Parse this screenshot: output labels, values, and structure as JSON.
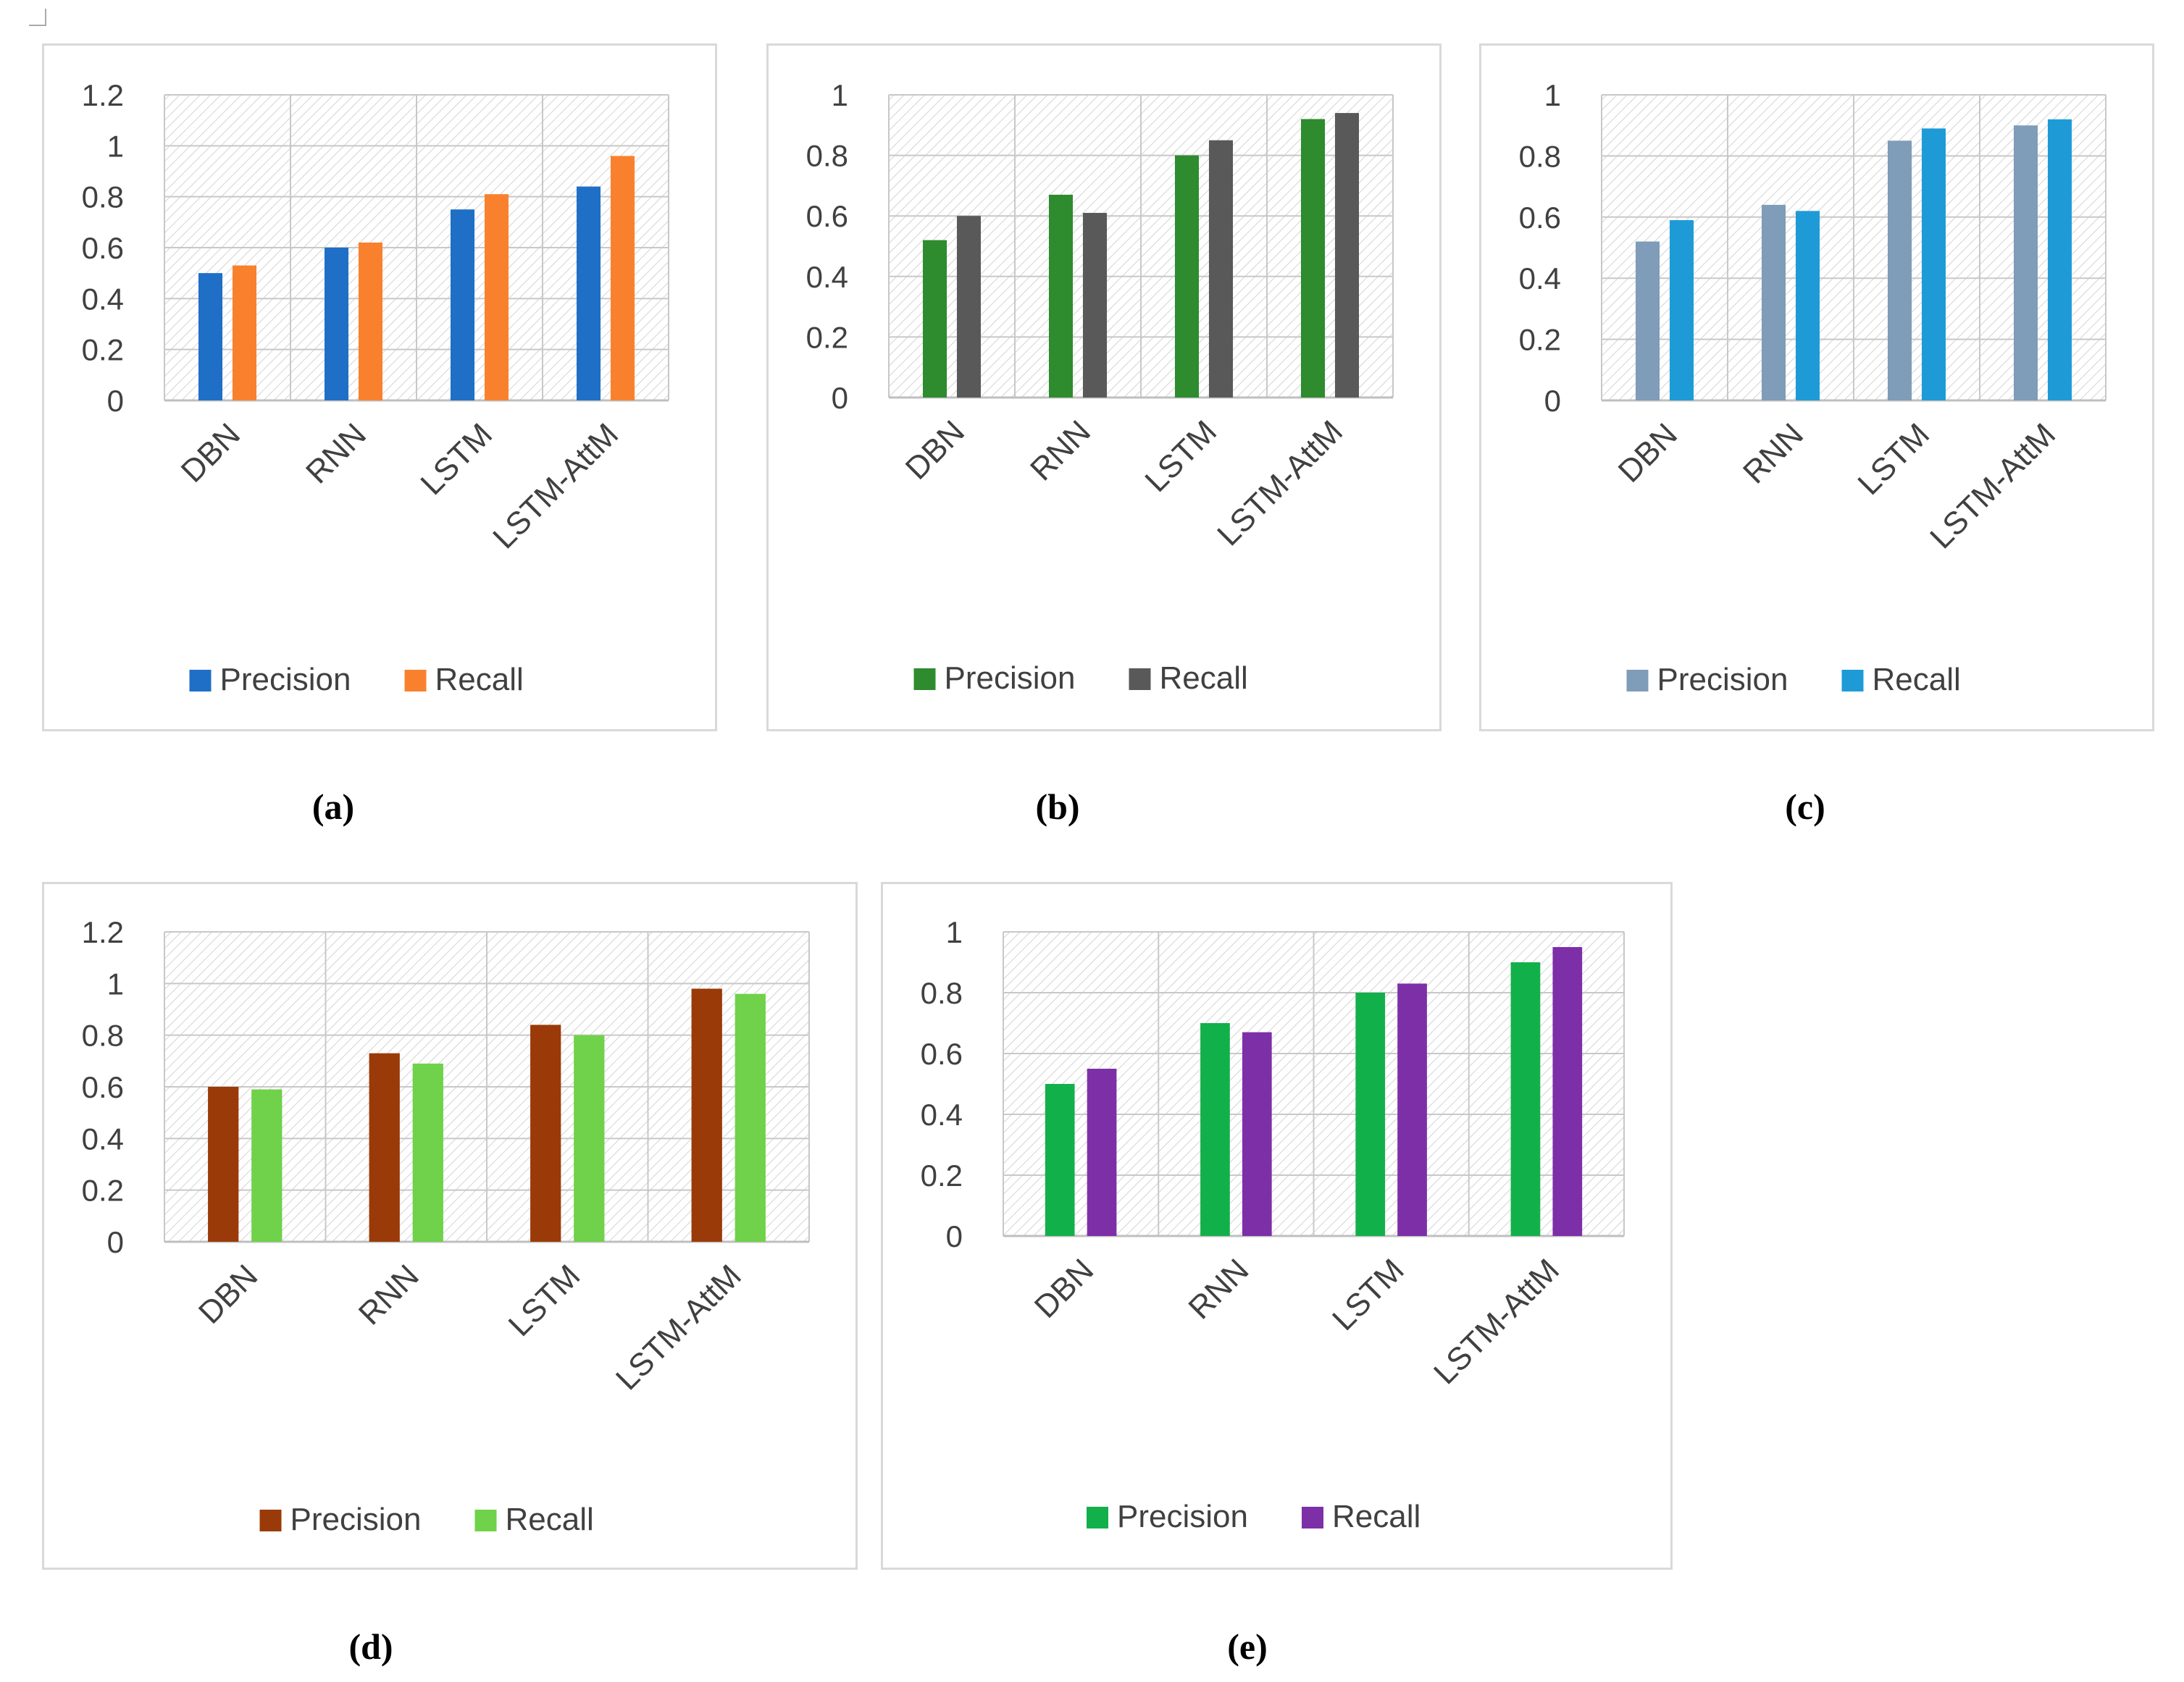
{
  "chart_data": [
    {
      "id": "a",
      "type": "bar",
      "caption": "(a)",
      "categories": [
        "DBN",
        "RNN",
        "LSTM",
        "LSTM-AttM"
      ],
      "yticks": [
        "0",
        "0.2",
        "0.4",
        "0.6",
        "0.8",
        "1",
        "1.2"
      ],
      "ylim": [
        0,
        1.2
      ],
      "series": [
        {
          "name": "Precision",
          "color": "#1f6fc6",
          "values": [
            0.5,
            0.6,
            0.75,
            0.84
          ]
        },
        {
          "name": "Recall",
          "color": "#f9812e",
          "values": [
            0.53,
            0.62,
            0.81,
            0.96
          ]
        }
      ]
    },
    {
      "id": "b",
      "type": "bar",
      "caption": "(b)",
      "categories": [
        "DBN",
        "RNN",
        "LSTM",
        "LSTM-AttM"
      ],
      "yticks": [
        "0",
        "0.2",
        "0.4",
        "0.6",
        "0.8",
        "1"
      ],
      "ylim": [
        0,
        1.0
      ],
      "series": [
        {
          "name": "Precision",
          "color": "#2e8b2e",
          "values": [
            0.52,
            0.67,
            0.8,
            0.92
          ]
        },
        {
          "name": "Recall",
          "color": "#595959",
          "values": [
            0.6,
            0.61,
            0.85,
            0.94
          ]
        }
      ]
    },
    {
      "id": "c",
      "type": "bar",
      "caption": "(c)",
      "categories": [
        "DBN",
        "RNN",
        "LSTM",
        "LSTM-AttM"
      ],
      "yticks": [
        "0",
        "0.2",
        "0.4",
        "0.6",
        "0.8",
        "1"
      ],
      "ylim": [
        0,
        1.0
      ],
      "series": [
        {
          "name": "Precision",
          "color": "#7f9cb8",
          "values": [
            0.52,
            0.64,
            0.85,
            0.9
          ]
        },
        {
          "name": "Recall",
          "color": "#1e9bd7",
          "values": [
            0.59,
            0.62,
            0.89,
            0.92
          ]
        }
      ]
    },
    {
      "id": "d",
      "type": "bar",
      "caption": "(d)",
      "categories": [
        "DBN",
        "RNN",
        "LSTM",
        "LSTM-AttM"
      ],
      "yticks": [
        "0",
        "0.2",
        "0.4",
        "0.6",
        "0.8",
        "1",
        "1.2"
      ],
      "ylim": [
        0,
        1.2
      ],
      "series": [
        {
          "name": "Precision",
          "color": "#9a3a08",
          "values": [
            0.6,
            0.73,
            0.84,
            0.98
          ]
        },
        {
          "name": "Recall",
          "color": "#6fd24a",
          "values": [
            0.59,
            0.69,
            0.8,
            0.96
          ]
        }
      ]
    },
    {
      "id": "e",
      "type": "bar",
      "caption": "(e)",
      "categories": [
        "DBN",
        "RNN",
        "LSTM",
        "LSTM-AttM"
      ],
      "yticks": [
        "0",
        "0.2",
        "0.4",
        "0.6",
        "0.8",
        "1"
      ],
      "ylim": [
        0,
        1.0
      ],
      "series": [
        {
          "name": "Precision",
          "color": "#12b04a",
          "values": [
            0.5,
            0.7,
            0.8,
            0.9
          ]
        },
        {
          "name": "Recall",
          "color": "#7d2fa8",
          "values": [
            0.55,
            0.67,
            0.83,
            0.95
          ]
        }
      ]
    }
  ]
}
